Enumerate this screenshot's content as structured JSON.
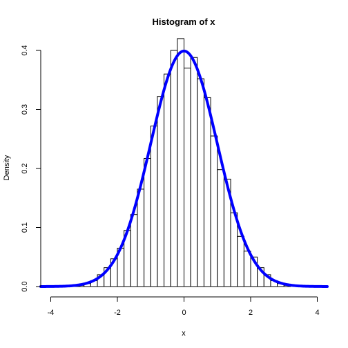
{
  "chart_data": {
    "type": "bar",
    "title": "Histogram of x",
    "xlabel": "x",
    "ylabel": "Density",
    "xlim": [
      -4.3,
      4.3
    ],
    "ylim": [
      0,
      0.4
    ],
    "xticks": [
      -4,
      -2,
      0,
      2,
      4
    ],
    "xtick_labels": [
      "-4",
      "-2",
      "0",
      "2",
      "4"
    ],
    "yticks": [
      0.0,
      0.1,
      0.2,
      0.3,
      0.4
    ],
    "ytick_labels": [
      "0.0",
      "0.1",
      "0.2",
      "0.3",
      "0.4"
    ],
    "grid": false,
    "bin_width": 0.2,
    "bins": [
      {
        "start": -3.4,
        "end": -3.2,
        "density": 0.001
      },
      {
        "start": -3.2,
        "end": -3.0,
        "density": 0.002
      },
      {
        "start": -3.0,
        "end": -2.8,
        "density": 0.005
      },
      {
        "start": -2.8,
        "end": -2.6,
        "density": 0.01
      },
      {
        "start": -2.6,
        "end": -2.4,
        "density": 0.02
      },
      {
        "start": -2.4,
        "end": -2.2,
        "density": 0.032
      },
      {
        "start": -2.2,
        "end": -2.0,
        "density": 0.047
      },
      {
        "start": -2.0,
        "end": -1.8,
        "density": 0.065
      },
      {
        "start": -1.8,
        "end": -1.6,
        "density": 0.095
      },
      {
        "start": -1.6,
        "end": -1.4,
        "density": 0.122
      },
      {
        "start": -1.4,
        "end": -1.2,
        "density": 0.165
      },
      {
        "start": -1.2,
        "end": -1.0,
        "density": 0.217
      },
      {
        "start": -1.0,
        "end": -0.8,
        "density": 0.272
      },
      {
        "start": -0.8,
        "end": -0.6,
        "density": 0.322
      },
      {
        "start": -0.6,
        "end": -0.4,
        "density": 0.36
      },
      {
        "start": -0.4,
        "end": -0.2,
        "density": 0.4
      },
      {
        "start": -0.2,
        "end": 0.0,
        "density": 0.42
      },
      {
        "start": 0.0,
        "end": 0.2,
        "density": 0.37
      },
      {
        "start": 0.2,
        "end": 0.4,
        "density": 0.388
      },
      {
        "start": 0.4,
        "end": 0.6,
        "density": 0.352
      },
      {
        "start": 0.6,
        "end": 0.8,
        "density": 0.32
      },
      {
        "start": 0.8,
        "end": 1.0,
        "density": 0.255
      },
      {
        "start": 1.0,
        "end": 1.2,
        "density": 0.198
      },
      {
        "start": 1.2,
        "end": 1.4,
        "density": 0.182
      },
      {
        "start": 1.4,
        "end": 1.6,
        "density": 0.125
      },
      {
        "start": 1.6,
        "end": 1.8,
        "density": 0.085
      },
      {
        "start": 1.8,
        "end": 2.0,
        "density": 0.06
      },
      {
        "start": 2.0,
        "end": 2.2,
        "density": 0.05
      },
      {
        "start": 2.2,
        "end": 2.4,
        "density": 0.032
      },
      {
        "start": 2.4,
        "end": 2.6,
        "density": 0.02
      },
      {
        "start": 2.6,
        "end": 2.8,
        "density": 0.01
      },
      {
        "start": 2.8,
        "end": 3.0,
        "density": 0.005
      },
      {
        "start": 3.0,
        "end": 3.2,
        "density": 0.002
      }
    ],
    "series": [
      {
        "type": "line",
        "function": "normal_density",
        "mean": 0,
        "sd": 1,
        "x_range": [
          -4.3,
          4.3
        ],
        "color": "#0000FF"
      }
    ],
    "colors": {
      "bar_fill": "#FFFFFF",
      "bar_stroke": "#000000",
      "curve": "#0000FF",
      "axis": "#000000",
      "background": "#FFFFFF"
    }
  }
}
